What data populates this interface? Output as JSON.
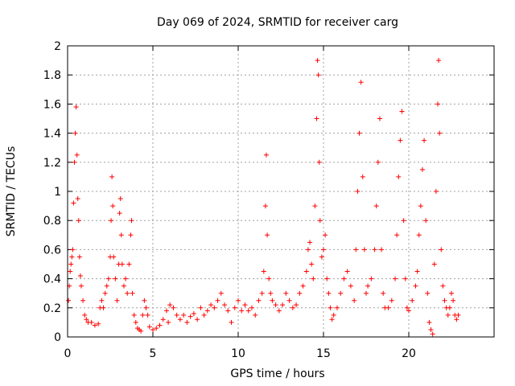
{
  "chart_data": {
    "type": "scatter",
    "title": "Day 069 of 2024, SRMTID for receiver carg",
    "xlabel": "GPS time / hours",
    "ylabel": "SRMTID / TECUs",
    "xlim": [
      0,
      25
    ],
    "ylim": [
      0,
      2
    ],
    "xticks": [
      0,
      5,
      10,
      15,
      20
    ],
    "xtick_labels": [
      "0",
      "5",
      "10",
      "15",
      "20"
    ],
    "yticks": [
      0,
      0.2,
      0.4,
      0.6,
      0.8,
      1,
      1.2,
      1.4,
      1.6,
      1.8,
      2
    ],
    "ytick_labels": [
      "0",
      "0.2",
      "0.4",
      "0.6",
      "0.8",
      "1",
      "1.2",
      "1.4",
      "1.6",
      "1.8",
      "2"
    ],
    "grid": true,
    "marker": "+",
    "series": [
      {
        "name": "SRMTID",
        "color": "#ff0000",
        "points": [
          [
            0.05,
            0.25
          ],
          [
            0.1,
            0.35
          ],
          [
            0.15,
            0.45
          ],
          [
            0.2,
            0.5
          ],
          [
            0.25,
            0.55
          ],
          [
            0.3,
            0.6
          ],
          [
            0.35,
            0.92
          ],
          [
            0.4,
            1.2
          ],
          [
            0.45,
            1.4
          ],
          [
            0.5,
            1.58
          ],
          [
            0.55,
            1.25
          ],
          [
            0.6,
            0.95
          ],
          [
            0.65,
            0.8
          ],
          [
            0.7,
            0.55
          ],
          [
            0.75,
            0.42
          ],
          [
            0.8,
            0.35
          ],
          [
            0.9,
            0.25
          ],
          [
            1.0,
            0.15
          ],
          [
            1.1,
            0.12
          ],
          [
            1.2,
            0.1
          ],
          [
            1.4,
            0.1
          ],
          [
            1.6,
            0.08
          ],
          [
            1.8,
            0.09
          ],
          [
            1.9,
            0.2
          ],
          [
            2.0,
            0.25
          ],
          [
            2.1,
            0.2
          ],
          [
            2.2,
            0.3
          ],
          [
            2.3,
            0.35
          ],
          [
            2.4,
            0.4
          ],
          [
            2.5,
            0.55
          ],
          [
            2.55,
            0.8
          ],
          [
            2.6,
            1.1
          ],
          [
            2.65,
            0.9
          ],
          [
            2.7,
            0.55
          ],
          [
            2.8,
            0.4
          ],
          [
            2.9,
            0.25
          ],
          [
            3.0,
            0.5
          ],
          [
            3.05,
            0.85
          ],
          [
            3.1,
            0.95
          ],
          [
            3.15,
            0.7
          ],
          [
            3.2,
            0.5
          ],
          [
            3.3,
            0.35
          ],
          [
            3.4,
            0.4
          ],
          [
            3.5,
            0.3
          ],
          [
            3.6,
            0.5
          ],
          [
            3.7,
            0.7
          ],
          [
            3.75,
            0.8
          ],
          [
            3.8,
            0.3
          ],
          [
            3.9,
            0.15
          ],
          [
            4.0,
            0.1
          ],
          [
            4.1,
            0.06
          ],
          [
            4.2,
            0.05
          ],
          [
            4.3,
            0.04
          ],
          [
            4.4,
            0.15
          ],
          [
            4.5,
            0.25
          ],
          [
            4.6,
            0.2
          ],
          [
            4.7,
            0.15
          ],
          [
            4.8,
            0.07
          ],
          [
            5.0,
            0.05
          ],
          [
            5.2,
            0.06
          ],
          [
            5.4,
            0.08
          ],
          [
            5.6,
            0.12
          ],
          [
            5.8,
            0.18
          ],
          [
            5.9,
            0.1
          ],
          [
            6.0,
            0.22
          ],
          [
            6.2,
            0.2
          ],
          [
            6.4,
            0.15
          ],
          [
            6.6,
            0.12
          ],
          [
            6.8,
            0.15
          ],
          [
            7.0,
            0.1
          ],
          [
            7.2,
            0.14
          ],
          [
            7.4,
            0.16
          ],
          [
            7.6,
            0.12
          ],
          [
            7.8,
            0.2
          ],
          [
            8.0,
            0.15
          ],
          [
            8.2,
            0.18
          ],
          [
            8.4,
            0.22
          ],
          [
            8.6,
            0.2
          ],
          [
            8.8,
            0.25
          ],
          [
            9.0,
            0.3
          ],
          [
            9.2,
            0.22
          ],
          [
            9.4,
            0.18
          ],
          [
            9.6,
            0.1
          ],
          [
            9.8,
            0.2
          ],
          [
            10.0,
            0.25
          ],
          [
            10.2,
            0.18
          ],
          [
            10.4,
            0.22
          ],
          [
            10.6,
            0.18
          ],
          [
            10.8,
            0.2
          ],
          [
            11.0,
            0.15
          ],
          [
            11.2,
            0.25
          ],
          [
            11.4,
            0.3
          ],
          [
            11.5,
            0.45
          ],
          [
            11.6,
            0.9
          ],
          [
            11.65,
            1.25
          ],
          [
            11.7,
            0.7
          ],
          [
            11.8,
            0.4
          ],
          [
            11.9,
            0.3
          ],
          [
            12.0,
            0.25
          ],
          [
            12.2,
            0.22
          ],
          [
            12.4,
            0.18
          ],
          [
            12.6,
            0.22
          ],
          [
            12.8,
            0.3
          ],
          [
            13.0,
            0.25
          ],
          [
            13.2,
            0.2
          ],
          [
            13.4,
            0.22
          ],
          [
            13.6,
            0.3
          ],
          [
            13.8,
            0.35
          ],
          [
            14.0,
            0.45
          ],
          [
            14.1,
            0.6
          ],
          [
            14.2,
            0.65
          ],
          [
            14.3,
            0.5
          ],
          [
            14.4,
            0.4
          ],
          [
            14.5,
            0.9
          ],
          [
            14.6,
            1.5
          ],
          [
            14.65,
            1.9
          ],
          [
            14.7,
            1.8
          ],
          [
            14.75,
            1.2
          ],
          [
            14.8,
            0.8
          ],
          [
            14.9,
            0.55
          ],
          [
            15.0,
            0.6
          ],
          [
            15.1,
            0.7
          ],
          [
            15.2,
            0.4
          ],
          [
            15.3,
            0.3
          ],
          [
            15.4,
            0.2
          ],
          [
            15.5,
            0.12
          ],
          [
            15.6,
            0.15
          ],
          [
            15.8,
            0.2
          ],
          [
            16.0,
            0.3
          ],
          [
            16.2,
            0.4
          ],
          [
            16.4,
            0.45
          ],
          [
            16.6,
            0.35
          ],
          [
            16.8,
            0.25
          ],
          [
            16.9,
            0.6
          ],
          [
            17.0,
            1.0
          ],
          [
            17.1,
            1.4
          ],
          [
            17.2,
            1.75
          ],
          [
            17.3,
            1.1
          ],
          [
            17.4,
            0.6
          ],
          [
            17.5,
            0.3
          ],
          [
            17.6,
            0.35
          ],
          [
            17.8,
            0.4
          ],
          [
            18.0,
            0.6
          ],
          [
            18.1,
            0.9
          ],
          [
            18.2,
            1.2
          ],
          [
            18.3,
            1.5
          ],
          [
            18.4,
            0.6
          ],
          [
            18.5,
            0.3
          ],
          [
            18.6,
            0.2
          ],
          [
            18.8,
            0.2
          ],
          [
            19.0,
            0.25
          ],
          [
            19.2,
            0.4
          ],
          [
            19.3,
            0.7
          ],
          [
            19.4,
            1.1
          ],
          [
            19.5,
            1.35
          ],
          [
            19.6,
            1.55
          ],
          [
            19.7,
            0.8
          ],
          [
            19.8,
            0.4
          ],
          [
            19.9,
            0.2
          ],
          [
            20.0,
            0.18
          ],
          [
            20.2,
            0.25
          ],
          [
            20.4,
            0.35
          ],
          [
            20.5,
            0.45
          ],
          [
            20.6,
            0.7
          ],
          [
            20.7,
            0.9
          ],
          [
            20.8,
            1.15
          ],
          [
            20.9,
            1.35
          ],
          [
            21.0,
            0.8
          ],
          [
            21.1,
            0.3
          ],
          [
            21.2,
            0.1
          ],
          [
            21.3,
            0.05
          ],
          [
            21.4,
            0.02
          ],
          [
            21.5,
            0.5
          ],
          [
            21.6,
            1.0
          ],
          [
            21.7,
            1.6
          ],
          [
            21.75,
            1.9
          ],
          [
            21.8,
            1.4
          ],
          [
            21.9,
            0.6
          ],
          [
            22.0,
            0.35
          ],
          [
            22.1,
            0.25
          ],
          [
            22.2,
            0.2
          ],
          [
            22.3,
            0.15
          ],
          [
            22.4,
            0.2
          ],
          [
            22.5,
            0.3
          ],
          [
            22.6,
            0.25
          ],
          [
            22.7,
            0.15
          ],
          [
            22.8,
            0.12
          ],
          [
            22.9,
            0.15
          ]
        ]
      }
    ]
  }
}
